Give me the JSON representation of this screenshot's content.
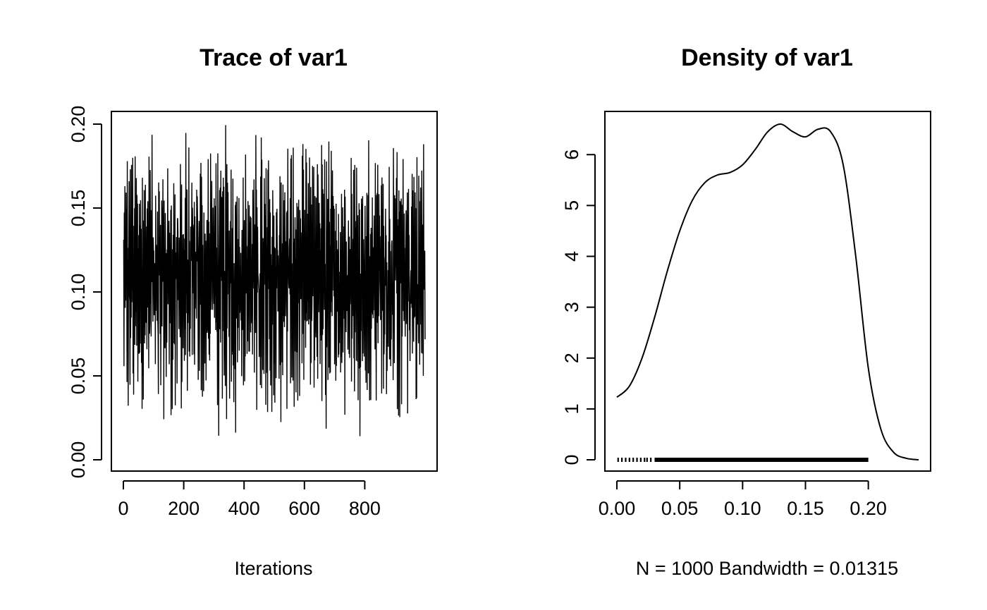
{
  "chart_data": [
    {
      "type": "line",
      "title": "Trace of var1",
      "xlabel": "Iterations",
      "ylabel": "",
      "xlim": [
        0,
        1000
      ],
      "ylim": [
        0,
        0.2
      ],
      "xticks": [
        "0",
        "200",
        "400",
        "600",
        "800"
      ],
      "yticks": [
        "0.00",
        "0.05",
        "0.10",
        "0.15",
        "0.20"
      ],
      "n_iterations": 1000,
      "series": [
        {
          "description_values_sample": [
            0.13,
            0.05,
            0.16,
            0.07,
            0.18,
            0.06,
            0.2,
            0.04,
            0.17,
            0.09,
            0.15,
            0.03,
            0.19,
            0.08,
            0.12,
            0.02,
            0.18,
            0.1,
            0.16,
            0.05,
            0.14,
            0.01,
            0.19,
            0.07,
            0.13,
            0.09,
            0.17,
            0.04,
            0.16,
            0.11,
            0.19,
            0.06,
            0.15,
            0.02,
            0.18,
            0.08,
            0.12,
            0.05,
            0.2,
            0.1,
            0.14,
            0.03,
            0.17,
            0.07,
            0.19,
            0.12,
            0.16,
            0.06,
            0.13,
            0.09
          ]
        }
      ],
      "grid": false
    },
    {
      "type": "line",
      "title": "Density of var1",
      "xlabel": "N = 1000   Bandwidth = 0.01315",
      "ylabel": "",
      "xlim": [
        0,
        0.24
      ],
      "ylim": [
        0,
        6.6
      ],
      "xticks": [
        "0.00",
        "0.05",
        "0.10",
        "0.15",
        "0.20"
      ],
      "yticks": [
        "0",
        "1",
        "2",
        "3",
        "4",
        "5",
        "6"
      ],
      "series": [
        {
          "x": [
            0.0,
            0.01,
            0.02,
            0.03,
            0.04,
            0.05,
            0.06,
            0.07,
            0.08,
            0.09,
            0.1,
            0.11,
            0.12,
            0.13,
            0.14,
            0.15,
            0.16,
            0.17,
            0.18,
            0.19,
            0.2,
            0.21,
            0.22,
            0.23,
            0.24
          ],
          "y": [
            1.23,
            1.45,
            2.0,
            2.8,
            3.7,
            4.5,
            5.1,
            5.45,
            5.6,
            5.65,
            5.8,
            6.1,
            6.45,
            6.6,
            6.45,
            6.35,
            6.5,
            6.45,
            5.8,
            4.0,
            1.8,
            0.6,
            0.15,
            0.03,
            0.0
          ]
        }
      ],
      "rug": {
        "from": 0.0,
        "to": 0.2
      },
      "grid": false
    }
  ]
}
